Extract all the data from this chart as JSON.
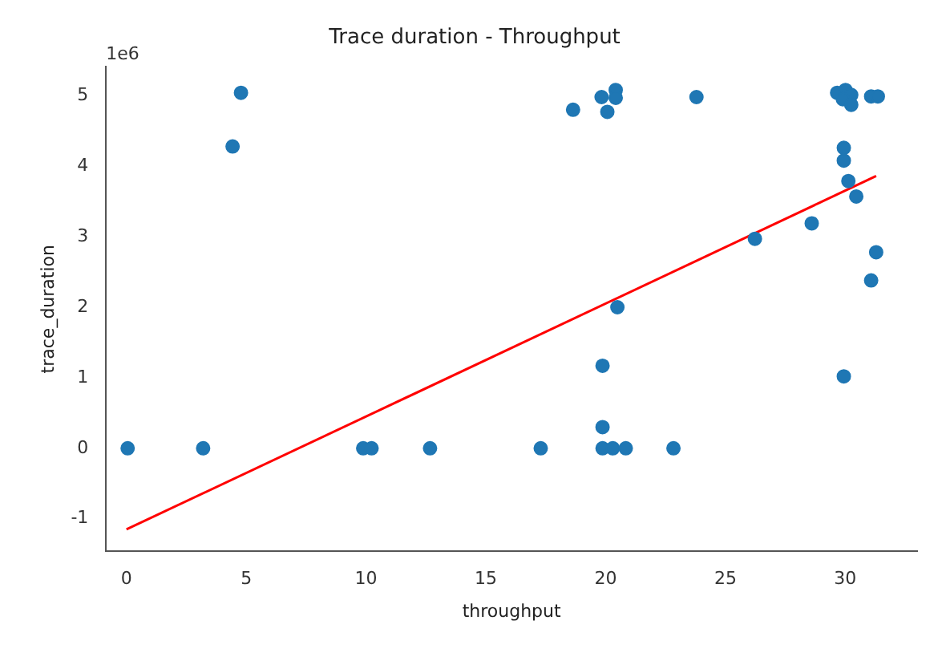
{
  "chart_data": {
    "type": "scatter",
    "title": "Trace duration - Throughput",
    "xlabel": "throughput",
    "ylabel": "trace_duration",
    "annotations": [
      "1e6"
    ],
    "xlim": [
      -0.85,
      33
    ],
    "ylim": [
      -1.46,
      5.41
    ],
    "xticks": [
      0,
      5,
      10,
      15,
      20,
      25,
      30
    ],
    "yticks": [
      -1,
      0,
      1,
      2,
      3,
      4,
      5
    ],
    "grid": false,
    "legend": false,
    "marker": "circle",
    "series": [
      {
        "color": "#1f77b4",
        "x": [
          0.05,
          3.2,
          4.43,
          4.78,
          9.88,
          10.23,
          12.67,
          17.29,
          18.64,
          19.83,
          20.42,
          20.42,
          20.07,
          23.79,
          20.49,
          19.87,
          19.87,
          19.87,
          20.3,
          20.84,
          22.83,
          26.23,
          28.6,
          29.94,
          29.94,
          29.94,
          30.13,
          30.46,
          31.29,
          31.08,
          29.66,
          30.01,
          30.25,
          29.9,
          30.25,
          31.08,
          31.36
        ],
        "values": [
          0,
          0,
          4.28,
          5.04,
          0,
          0,
          0,
          0,
          4.8,
          4.98,
          5.08,
          4.97,
          4.77,
          4.98,
          2.0,
          1.17,
          0.3,
          0,
          0,
          0,
          0,
          2.97,
          3.19,
          1.02,
          4.26,
          4.08,
          3.79,
          3.57,
          2.78,
          2.38,
          5.04,
          5.08,
          5.01,
          4.95,
          4.87,
          4.99,
          4.99
        ]
      },
      {
        "type": "line",
        "color": "#ff0000",
        "marker": "none",
        "x": [
          0,
          31.29
        ],
        "values": [
          -1.15,
          3.86
        ]
      }
    ]
  }
}
